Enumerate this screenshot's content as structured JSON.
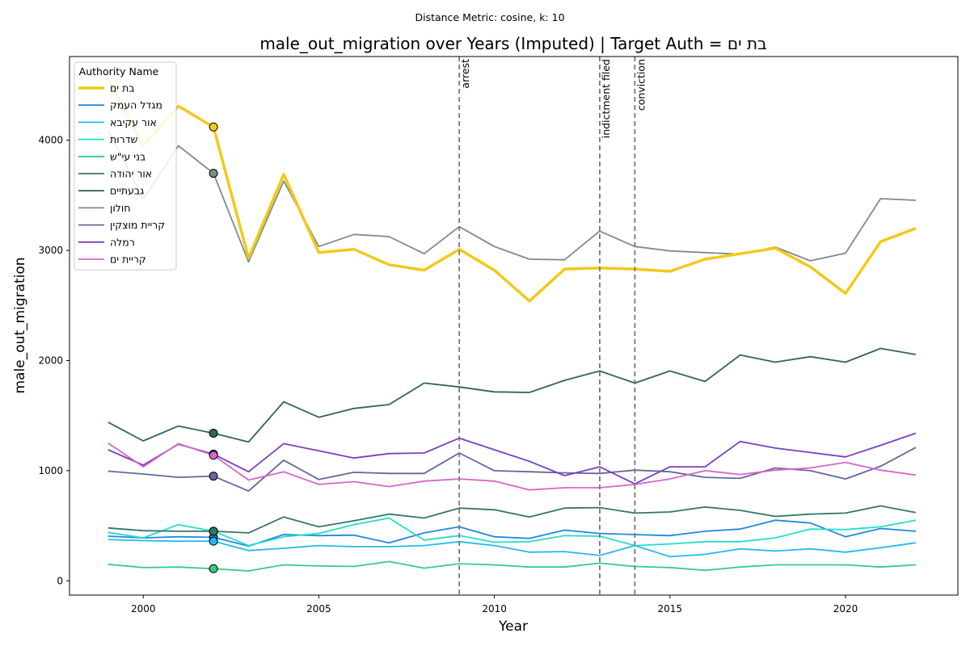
{
  "chart_data": {
    "type": "line",
    "suptitle": "Distance Metric: cosine, k: 10",
    "title": "male_out_migration over Years (Imputed) | Target Auth = בת ים",
    "xlabel": "Year",
    "ylabel": "male_out_migration",
    "xlim": [
      1997.9,
      2023.2
    ],
    "ylim": [
      -130,
      4760
    ],
    "xticks": [
      2000,
      2005,
      2010,
      2015,
      2020
    ],
    "yticks": [
      0,
      1000,
      2000,
      3000,
      4000
    ],
    "x": [
      1999,
      2000,
      2001,
      2002,
      2003,
      2004,
      2005,
      2006,
      2007,
      2008,
      2009,
      2010,
      2011,
      2012,
      2013,
      2014,
      2015,
      2016,
      2017,
      2018,
      2019,
      2020,
      2021,
      2022
    ],
    "legend_title": "Authority Name",
    "legend_position": "upper-left",
    "events": [
      {
        "year": 2009,
        "label": "arrest"
      },
      {
        "year": 2013,
        "label": "indictment filed"
      },
      {
        "year": 2014,
        "label": "conviction"
      }
    ],
    "imputed_year": 2002,
    "series": [
      {
        "name": "בת ים",
        "color": "#f2c918",
        "target": true,
        "values": [
          4560,
          3950,
          4310,
          4120,
          2930,
          3690,
          2980,
          3010,
          2870,
          2820,
          3010,
          2820,
          2540,
          2830,
          2840,
          2830,
          2810,
          2920,
          2970,
          3020,
          2850,
          2610,
          3080,
          3200
        ]
      },
      {
        "name": "מגדל העמק",
        "color": "#2288dd",
        "values": [
          405,
          390,
          400,
          395,
          315,
          420,
          410,
          415,
          345,
          435,
          490,
          400,
          385,
          460,
          430,
          420,
          410,
          450,
          470,
          550,
          525,
          400,
          475,
          450
        ]
      },
      {
        "name": "אור עקיבא",
        "color": "#22bbee",
        "values": [
          375,
          365,
          360,
          360,
          275,
          295,
          320,
          310,
          310,
          320,
          355,
          320,
          260,
          265,
          230,
          320,
          220,
          240,
          290,
          270,
          290,
          260,
          300,
          345
        ]
      },
      {
        "name": "שדרות",
        "color": "#22ddcc",
        "values": [
          440,
          390,
          510,
          450,
          320,
          400,
          430,
          510,
          570,
          370,
          410,
          350,
          355,
          410,
          405,
          320,
          335,
          355,
          355,
          390,
          470,
          465,
          490,
          550
        ]
      },
      {
        "name": "בני עי\"ש",
        "color": "#33cc88",
        "values": [
          150,
          120,
          125,
          110,
          90,
          145,
          135,
          130,
          175,
          115,
          155,
          145,
          125,
          125,
          160,
          130,
          120,
          95,
          125,
          145,
          145,
          145,
          125,
          145
        ]
      },
      {
        "name": "אור יהודה",
        "color": "#337766",
        "values": [
          480,
          455,
          450,
          450,
          435,
          580,
          490,
          545,
          605,
          570,
          660,
          645,
          580,
          660,
          665,
          615,
          625,
          670,
          640,
          585,
          605,
          615,
          680,
          620
        ]
      },
      {
        "name": "גבעתיים",
        "color": "#336655",
        "values": [
          1440,
          1270,
          1405,
          1340,
          1260,
          1625,
          1485,
          1565,
          1600,
          1795,
          1760,
          1715,
          1710,
          1820,
          1905,
          1795,
          1905,
          1810,
          2050,
          1985,
          2035,
          1985,
          2110,
          2055
        ]
      },
      {
        "name": "חולון",
        "color": "#7f8c88",
        "values": [
          4090,
          3470,
          3950,
          3700,
          2895,
          3630,
          3035,
          3145,
          3125,
          2970,
          3215,
          3035,
          2920,
          2915,
          3175,
          3035,
          2995,
          2980,
          2965,
          3030,
          2905,
          2975,
          3470,
          3455
        ]
      },
      {
        "name": "קריית מוצקין",
        "color": "#666699",
        "values": [
          995,
          970,
          940,
          950,
          815,
          1095,
          920,
          985,
          975,
          975,
          1160,
          1000,
          990,
          980,
          975,
          1005,
          990,
          940,
          930,
          1025,
          1000,
          925,
          1040,
          1210
        ]
      },
      {
        "name": "רמלה",
        "color": "#7b3fbf",
        "values": [
          1190,
          1050,
          1240,
          1150,
          990,
          1245,
          1180,
          1115,
          1155,
          1160,
          1295,
          1190,
          1085,
          955,
          1035,
          880,
          1035,
          1035,
          1265,
          1205,
          1165,
          1125,
          1230,
          1340
        ]
      },
      {
        "name": "קריית ים",
        "color": "#d466cc",
        "values": [
          1250,
          1035,
          1245,
          1140,
          915,
          990,
          875,
          900,
          855,
          905,
          925,
          905,
          825,
          845,
          845,
          875,
          925,
          1000,
          965,
          1005,
          1025,
          1075,
          1005,
          960
        ]
      }
    ]
  }
}
